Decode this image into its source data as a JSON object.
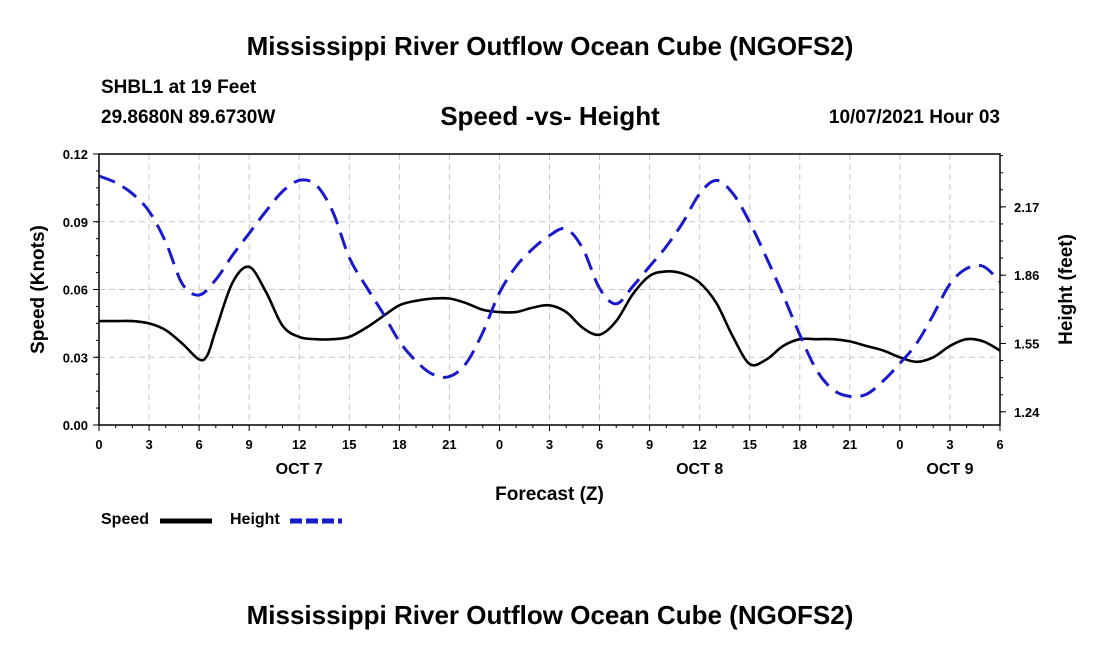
{
  "header": {
    "title": "Mississippi River Outflow Ocean Cube (NGOFS2)",
    "station": "SHBL1 at 19 Feet",
    "coords": "29.8680N  89.6730W",
    "subtitle": "Speed -vs- Height",
    "datetime": "10/07/2021 Hour 03"
  },
  "footer": {
    "title": "Mississippi River Outflow Ocean Cube (NGOFS2)"
  },
  "chart_data": {
    "type": "line",
    "xlabel": "Forecast (Z)",
    "ylabel": "Speed (Knots)",
    "y2label": "Height (feet)",
    "x_range": [
      0,
      54
    ],
    "ylim": [
      0,
      0.12
    ],
    "y2lim": [
      1.18,
      2.41
    ],
    "x_ticks": [
      0,
      3,
      6,
      9,
      12,
      15,
      18,
      21,
      24,
      27,
      30,
      33,
      36,
      39,
      42,
      45,
      48,
      51,
      54
    ],
    "x_tick_labels": [
      "0",
      "3",
      "6",
      "9",
      "12",
      "15",
      "18",
      "21",
      "0",
      "3",
      "6",
      "9",
      "12",
      "15",
      "18",
      "21",
      "0",
      "3",
      "6"
    ],
    "day_labels": [
      {
        "x": 12,
        "label": "OCT 7"
      },
      {
        "x": 36,
        "label": "OCT 8"
      },
      {
        "x": 51,
        "label": "OCT 9"
      }
    ],
    "y_ticks": [
      0,
      0.03,
      0.06,
      0.09,
      0.12
    ],
    "y_tick_labels": [
      "0.00",
      "0.03",
      "0.06",
      "0.09",
      "0.12"
    ],
    "y2_ticks": [
      1.24,
      1.55,
      1.86,
      2.17
    ],
    "y2_tick_labels": [
      "1.24",
      "1.55",
      "1.86",
      "2.17"
    ],
    "grid": true,
    "legend": [
      {
        "name": "Speed",
        "color": "#000000",
        "style": "solid"
      },
      {
        "name": "Height",
        "color": "#1a1acc",
        "style": "dashed"
      }
    ],
    "series": [
      {
        "name": "Speed",
        "axis": "left",
        "color": "#000000",
        "dash": false,
        "x": [
          0,
          1,
          2,
          3,
          4,
          5,
          6,
          6.5,
          7,
          8,
          9,
          10,
          11,
          12,
          13,
          14,
          15,
          16,
          17,
          18,
          19,
          20,
          21,
          22,
          23,
          24,
          25,
          26,
          27,
          28,
          29,
          30,
          31,
          32,
          33,
          34,
          35,
          36,
          37,
          38,
          39,
          40,
          41,
          42,
          43,
          44,
          45,
          46,
          47,
          48,
          49,
          50,
          51,
          52,
          53,
          54
        ],
        "y": [
          0.046,
          0.046,
          0.046,
          0.045,
          0.042,
          0.036,
          0.029,
          0.031,
          0.042,
          0.063,
          0.07,
          0.059,
          0.044,
          0.039,
          0.038,
          0.038,
          0.039,
          0.043,
          0.048,
          0.053,
          0.055,
          0.056,
          0.056,
          0.054,
          0.051,
          0.05,
          0.05,
          0.052,
          0.053,
          0.05,
          0.043,
          0.04,
          0.046,
          0.058,
          0.066,
          0.068,
          0.067,
          0.063,
          0.054,
          0.039,
          0.027,
          0.029,
          0.035,
          0.038,
          0.038,
          0.038,
          0.037,
          0.035,
          0.033,
          0.03,
          0.028,
          0.03,
          0.035,
          0.038,
          0.037,
          0.033
        ]
      },
      {
        "name": "Height",
        "axis": "right",
        "color": "#1a1acc",
        "dash": true,
        "x": [
          0,
          1,
          2,
          3,
          4,
          5,
          6,
          7,
          8,
          9,
          10,
          11,
          12,
          13,
          14,
          15,
          16,
          17,
          18,
          19,
          20,
          21,
          22,
          23,
          24,
          25,
          26,
          27,
          28,
          29,
          30,
          31,
          32,
          33,
          34,
          35,
          36,
          37,
          38,
          39,
          40,
          41,
          42,
          43,
          44,
          45,
          46,
          47,
          48,
          49,
          50,
          51,
          52,
          53,
          54
        ],
        "y": [
          2.31,
          2.28,
          2.23,
          2.15,
          2.01,
          1.82,
          1.77,
          1.84,
          1.95,
          2.05,
          2.15,
          2.24,
          2.29,
          2.27,
          2.15,
          1.94,
          1.81,
          1.69,
          1.56,
          1.47,
          1.41,
          1.4,
          1.46,
          1.6,
          1.78,
          1.9,
          1.98,
          2.04,
          2.07,
          1.98,
          1.8,
          1.73,
          1.81,
          1.9,
          1.99,
          2.1,
          2.23,
          2.29,
          2.23,
          2.1,
          1.94,
          1.77,
          1.59,
          1.43,
          1.34,
          1.31,
          1.32,
          1.38,
          1.46,
          1.55,
          1.68,
          1.82,
          1.89,
          1.9,
          1.83
        ]
      }
    ]
  }
}
